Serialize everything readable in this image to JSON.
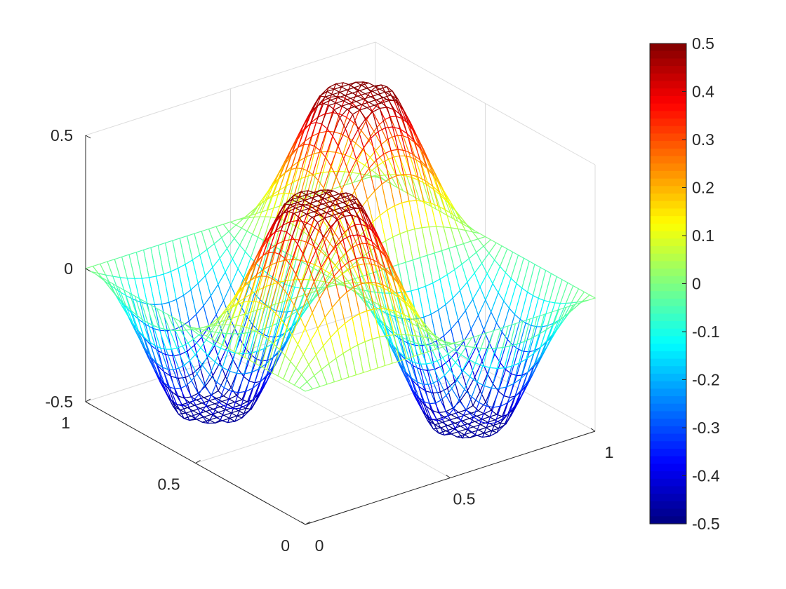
{
  "chart_data": {
    "type": "surface",
    "title": "",
    "xlabel": "",
    "ylabel": "",
    "zlabel": "",
    "xlim": [
      0,
      1
    ],
    "ylim": [
      0,
      1
    ],
    "zlim": [
      -0.5,
      0.5
    ],
    "function": "z = clip(0.5*sin(2*pi*x)*sin(2*pi*y)*2, -0.5, 0.5) approx; saddle-like with two peaks and two troughs",
    "grid_n": 41,
    "colormap": "jet",
    "x_ticks": [
      0,
      0.5,
      1
    ],
    "x_tick_labels": [
      "0",
      "0.5",
      "1"
    ],
    "y_ticks": [
      0,
      0.5,
      1
    ],
    "y_tick_labels": [
      "0",
      "0.5",
      "1"
    ],
    "z_ticks": [
      -0.5,
      0,
      0.5
    ],
    "z_tick_labels": [
      "-0.5",
      "0",
      "0.5"
    ],
    "colorbar": {
      "ticks": [
        0.5,
        0.4,
        0.3,
        0.2,
        0.1,
        0,
        -0.1,
        -0.2,
        -0.3,
        -0.4,
        -0.5
      ],
      "tick_labels": [
        "0.5",
        "0.4",
        "0.3",
        "0.2",
        "0.1",
        "0",
        "-0.1",
        "-0.2",
        "-0.3",
        "-0.4",
        "-0.5"
      ],
      "limits": [
        -0.5,
        0.5
      ],
      "placement": "right"
    },
    "colors": {
      "axis": "#262626",
      "grid": "#dcdcdc"
    }
  }
}
